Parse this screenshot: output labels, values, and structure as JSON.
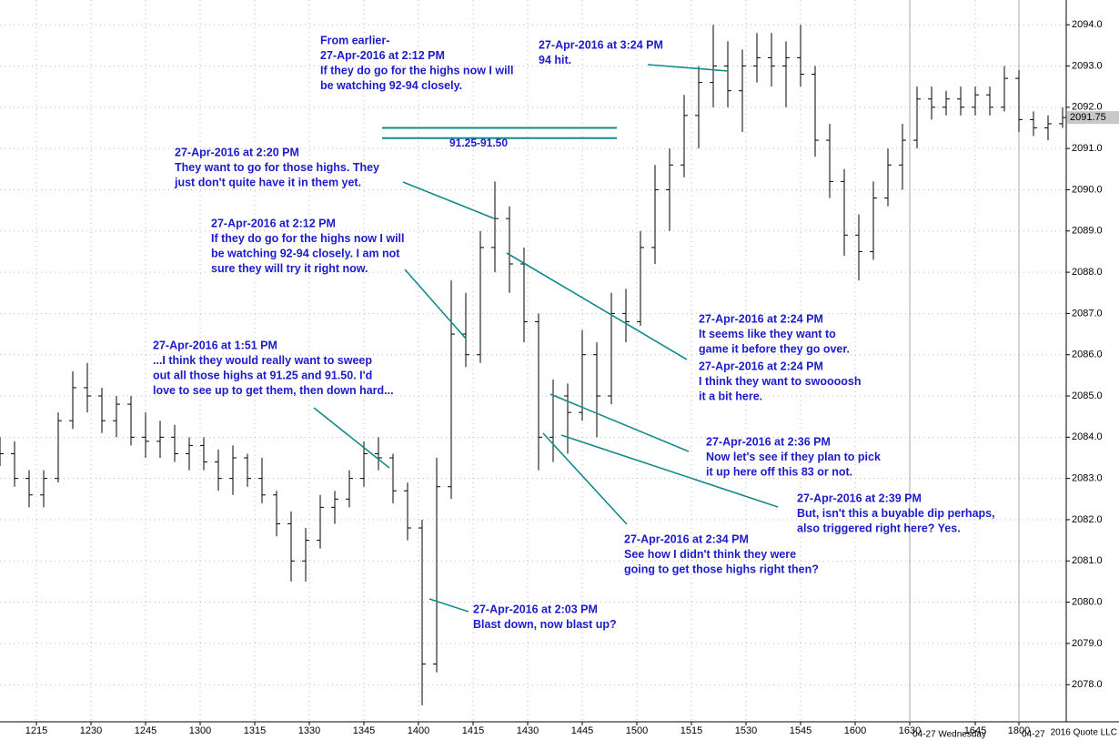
{
  "chart_data": {
    "type": "ohlc",
    "x": [
      0,
      4,
      8,
      12,
      16,
      20,
      24,
      28,
      32,
      36,
      40,
      44,
      48,
      52,
      56,
      60,
      64,
      68,
      72,
      76,
      80,
      84,
      88,
      92,
      96,
      100,
      104,
      108,
      112,
      116,
      120,
      124,
      128,
      132,
      136,
      140,
      144,
      148,
      152,
      156,
      160,
      164,
      168,
      172,
      176,
      180,
      184,
      188,
      192,
      196,
      200,
      204,
      208,
      212,
      216,
      220,
      224,
      228,
      232,
      236,
      240,
      244,
      248,
      252,
      256,
      260,
      264,
      268,
      272,
      276,
      280,
      284,
      288,
      292
    ],
    "open": [
      2083.8,
      2083.6,
      2083.0,
      2082.6,
      2083.0,
      2084.4,
      2085.2,
      2085.0,
      2084.4,
      2084.8,
      2084.0,
      2083.9,
      2084.0,
      2083.6,
      2083.8,
      2083.4,
      2083.0,
      2083.5,
      2083.0,
      2082.6,
      2081.9,
      2081.0,
      2081.5,
      2082.3,
      2082.5,
      2083.0,
      2083.6,
      2083.5,
      2082.7,
      2081.8,
      2078.5,
      2082.8,
      2086.5,
      2086.0,
      2088.6,
      2089.3,
      2088.2,
      2086.8,
      2084.0,
      2085.0,
      2084.6,
      2086.0,
      2085.0,
      2087.0,
      2086.8,
      2088.6,
      2090.0,
      2090.6,
      2091.8,
      2092.6,
      2093.0,
      2092.4,
      2093.0,
      2093.2,
      2093.0,
      2093.2,
      2092.8,
      2091.2,
      2090.2,
      2088.9,
      2088.5,
      2089.8,
      2090.6,
      2091.2,
      2092.2,
      2092.0,
      2092.2,
      2092.0,
      2092.3,
      2092.0,
      2092.7,
      2091.7,
      2091.5,
      2091.6
    ],
    "high": [
      2084.0,
      2083.9,
      2083.2,
      2083.2,
      2084.6,
      2085.6,
      2085.8,
      2085.2,
      2085.0,
      2085.0,
      2084.6,
      2084.4,
      2084.3,
      2084.0,
      2084.0,
      2083.7,
      2083.8,
      2083.6,
      2083.5,
      2082.7,
      2082.2,
      2081.8,
      2082.6,
      2082.7,
      2083.2,
      2083.9,
      2084.0,
      2083.6,
      2082.9,
      2082.0,
      2083.5,
      2087.8,
      2087.5,
      2089.0,
      2090.2,
      2089.6,
      2088.6,
      2087.0,
      2085.4,
      2085.3,
      2086.6,
      2086.3,
      2087.5,
      2087.6,
      2089.0,
      2090.6,
      2091.0,
      2092.3,
      2093.0,
      2094.0,
      2093.6,
      2093.4,
      2093.8,
      2093.8,
      2093.6,
      2094.0,
      2093.0,
      2091.6,
      2090.5,
      2089.4,
      2090.2,
      2091.0,
      2091.6,
      2092.5,
      2092.5,
      2092.4,
      2092.5,
      2092.5,
      2092.5,
      2093.0,
      2092.9,
      2091.9,
      2091.8,
      2092.0
    ],
    "low": [
      2083.3,
      2082.8,
      2082.3,
      2082.3,
      2082.9,
      2084.2,
      2084.6,
      2084.1,
      2084.0,
      2083.8,
      2083.5,
      2083.5,
      2083.4,
      2083.2,
      2083.2,
      2082.7,
      2082.6,
      2082.8,
      2082.4,
      2081.6,
      2080.5,
      2080.5,
      2081.3,
      2081.9,
      2082.3,
      2082.8,
      2083.2,
      2082.4,
      2081.5,
      2077.5,
      2078.3,
      2082.5,
      2085.7,
      2085.8,
      2088.0,
      2087.5,
      2086.3,
      2083.2,
      2083.4,
      2083.6,
      2084.4,
      2084.0,
      2084.8,
      2086.3,
      2086.7,
      2088.2,
      2089.0,
      2090.3,
      2091.0,
      2092.0,
      2092.0,
      2091.4,
      2092.6,
      2092.5,
      2092.0,
      2092.5,
      2090.8,
      2089.8,
      2088.4,
      2087.8,
      2088.3,
      2089.6,
      2090.0,
      2091.0,
      2091.7,
      2091.8,
      2091.8,
      2091.8,
      2091.8,
      2091.9,
      2091.4,
      2091.3,
      2091.2,
      2091.5
    ],
    "close": [
      2083.6,
      2083.0,
      2082.6,
      2083.0,
      2084.4,
      2085.2,
      2085.0,
      2084.4,
      2084.8,
      2084.0,
      2083.9,
      2084.0,
      2083.6,
      2083.8,
      2083.4,
      2083.0,
      2083.5,
      2083.0,
      2082.6,
      2081.9,
      2081.0,
      2081.5,
      2082.3,
      2082.5,
      2083.0,
      2083.6,
      2083.5,
      2082.7,
      2081.8,
      2078.5,
      2082.8,
      2086.5,
      2086.0,
      2088.6,
      2089.3,
      2088.2,
      2086.8,
      2084.0,
      2085.0,
      2084.6,
      2086.0,
      2085.0,
      2087.0,
      2086.8,
      2088.6,
      2090.0,
      2090.6,
      2091.8,
      2092.6,
      2093.0,
      2092.4,
      2093.0,
      2093.2,
      2093.0,
      2093.2,
      2092.8,
      2091.2,
      2090.2,
      2088.9,
      2088.5,
      2089.8,
      2090.6,
      2091.2,
      2092.2,
      2092.0,
      2092.2,
      2092.0,
      2092.3,
      2092.0,
      2092.7,
      2091.7,
      2091.5,
      2091.6,
      2091.75
    ],
    "xlim": [
      0,
      293
    ],
    "ylim": [
      2077.1,
      2094.6
    ],
    "xticks": [
      {
        "value": 10,
        "label": "1215"
      },
      {
        "value": 25,
        "label": "1230"
      },
      {
        "value": 40,
        "label": "1245"
      },
      {
        "value": 55,
        "label": "1300"
      },
      {
        "value": 70,
        "label": "1315"
      },
      {
        "value": 85,
        "label": "1330"
      },
      {
        "value": 100,
        "label": "1345"
      },
      {
        "value": 115,
        "label": "1400"
      },
      {
        "value": 130,
        "label": "1415"
      },
      {
        "value": 145,
        "label": "1430"
      },
      {
        "value": 160,
        "label": "1445"
      },
      {
        "value": 175,
        "label": "1500"
      },
      {
        "value": 190,
        "label": "1515"
      },
      {
        "value": 205,
        "label": "1530"
      },
      {
        "value": 220,
        "label": "1545"
      },
      {
        "value": 235,
        "label": "1600"
      },
      {
        "value": 250,
        "label": "1630"
      },
      {
        "value": 268,
        "label": "1645"
      },
      {
        "value": 280,
        "label": "1800"
      }
    ],
    "yticks": [
      {
        "value": 2078,
        "label": "2078.0"
      },
      {
        "value": 2079,
        "label": "2079.0"
      },
      {
        "value": 2080,
        "label": "2080.0"
      },
      {
        "value": 2081,
        "label": "2081.0"
      },
      {
        "value": 2082,
        "label": "2082.0"
      },
      {
        "value": 2083,
        "label": "2083.0"
      },
      {
        "value": 2084,
        "label": "2084.0"
      },
      {
        "value": 2085,
        "label": "2085.0"
      },
      {
        "value": 2086,
        "label": "2086.0"
      },
      {
        "value": 2087,
        "label": "2087.0"
      },
      {
        "value": 2088,
        "label": "2088.0"
      },
      {
        "value": 2089,
        "label": "2089.0"
      },
      {
        "value": 2090,
        "label": "2090.0"
      },
      {
        "value": 2091,
        "label": "2091.0"
      },
      {
        "value": 2092,
        "label": "2092.0"
      },
      {
        "value": 2093,
        "label": "2093.0"
      },
      {
        "value": 2094,
        "label": "2094.0"
      }
    ],
    "grid": true,
    "session_breaks": [
      250,
      280
    ],
    "session_labels": [
      "04-27 Wednesday",
      "04-27"
    ],
    "copyright": "2016 Quote LLC",
    "levels": [
      2091.25,
      2091.5
    ],
    "level_label": "91.25-91.50",
    "level_color": "#138a8a",
    "annotation_color": "#1c1cc8",
    "pointer_color": "#138a8a",
    "annotations": [
      {
        "lines": [
          "From earlier-",
          "27-Apr-2016 at 2:12 PM",
          "If they do go for the highs now I will",
          "be watching 92-94 closely."
        ]
      },
      {
        "lines": [
          "27-Apr-2016 at 3:24 PM",
          "94 hit."
        ]
      },
      {
        "lines": [
          "27-Apr-2016 at 2:20 PM",
          "They want to go for those highs. They",
          "just don't quite have it in them yet."
        ]
      },
      {
        "lines": [
          "27-Apr-2016 at 2:12 PM",
          "If they do go for the highs now I will",
          "be watching 92-94 closely. I am not",
          "sure they will try it right now."
        ]
      },
      {
        "lines": [
          "27-Apr-2016 at 2:24 PM",
          "It seems like they want to",
          "game it before they go over."
        ]
      },
      {
        "lines": [
          "27-Apr-2016 at 2:24 PM",
          "I think they want to swoooosh",
          "it a bit here."
        ]
      },
      {
        "lines": [
          "27-Apr-2016 at 1:51 PM",
          "...I think they would really want to sweep",
          "out all those highs at 91.25 and 91.50. I'd",
          "love to see up to get them, then down hard..."
        ]
      },
      {
        "lines": [
          "27-Apr-2016 at 2:36 PM",
          "Now let's see if they plan to pick",
          "it up here off this 83 or not."
        ]
      },
      {
        "lines": [
          "27-Apr-2016 at 2:39 PM",
          "But, isn't this a buyable dip perhaps,",
          "also triggered right here? Yes."
        ]
      },
      {
        "lines": [
          "27-Apr-2016 at 2:34 PM",
          "See how I didn't think they were",
          "going to get those highs right then?"
        ]
      },
      {
        "lines": [
          "27-Apr-2016 at 2:03 PM",
          "Blast down, now blast up?"
        ]
      }
    ]
  }
}
